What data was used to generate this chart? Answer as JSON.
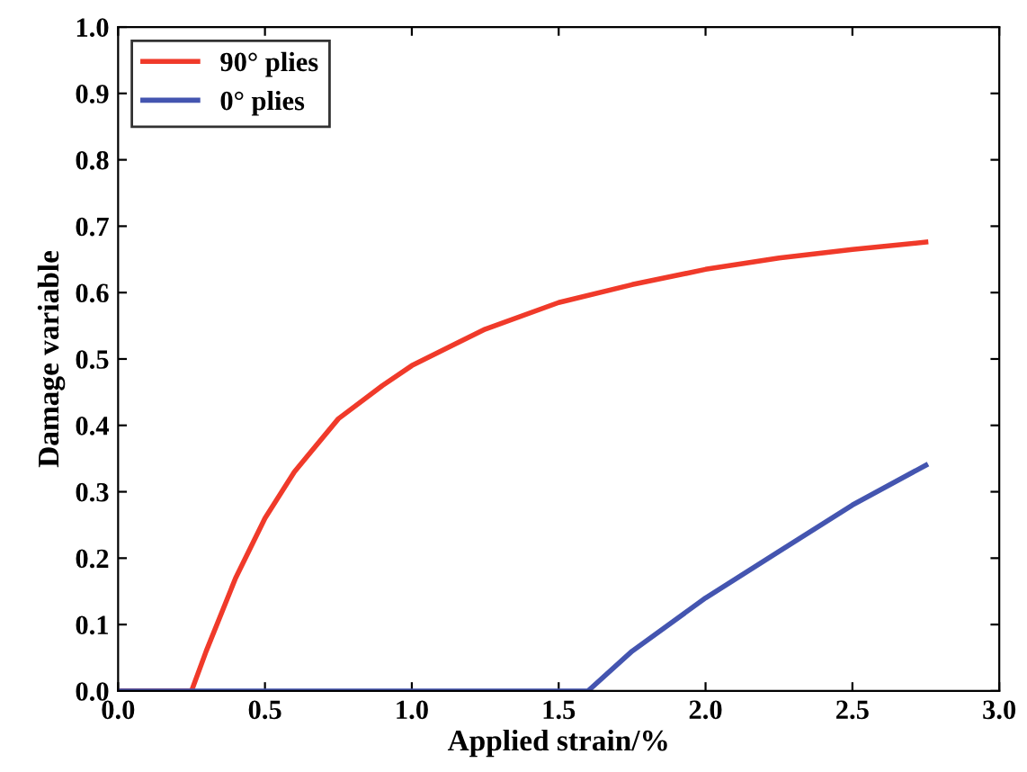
{
  "chart_data": {
    "type": "line",
    "xlabel": "Applied strain/%",
    "ylabel": "Damage variable",
    "xlim": [
      0,
      3.0
    ],
    "ylim": [
      0,
      1.0
    ],
    "xticks": [
      {
        "value": 0,
        "label": "0.0"
      },
      0.5,
      {
        "value": 1,
        "label": "1.0"
      },
      1.5,
      {
        "value": 2,
        "label": "2.0"
      },
      2.5,
      {
        "value": 3,
        "label": "3.0"
      }
    ],
    "yticks": [
      {
        "value": 0,
        "label": "0.0"
      },
      0.1,
      0.2,
      0.3,
      0.4,
      0.5,
      0.6,
      0.7,
      0.8,
      0.9,
      {
        "value": 1,
        "label": "1.0"
      }
    ],
    "legend": "top left",
    "grid": false,
    "marker": "none",
    "line_style": "solid",
    "series": [
      {
        "name": "90° plies",
        "color": "#f03a2a",
        "x": [
          0,
          0.25,
          0.3,
          0.4,
          0.5,
          0.6,
          0.75,
          0.9,
          1.0,
          1.25,
          1.5,
          1.75,
          2.0,
          2.25,
          2.5,
          2.75
        ],
        "values": [
          0,
          0,
          0.06,
          0.17,
          0.26,
          0.33,
          0.41,
          0.46,
          0.49,
          0.545,
          0.585,
          0.612,
          0.635,
          0.652,
          0.665,
          0.676
        ]
      },
      {
        "name": "0° plies",
        "color": "#4455b0",
        "x": [
          0,
          1.6,
          1.75,
          2.0,
          2.25,
          2.5,
          2.75
        ],
        "values": [
          0,
          0,
          0.06,
          0.14,
          0.21,
          0.28,
          0.34
        ]
      }
    ]
  }
}
